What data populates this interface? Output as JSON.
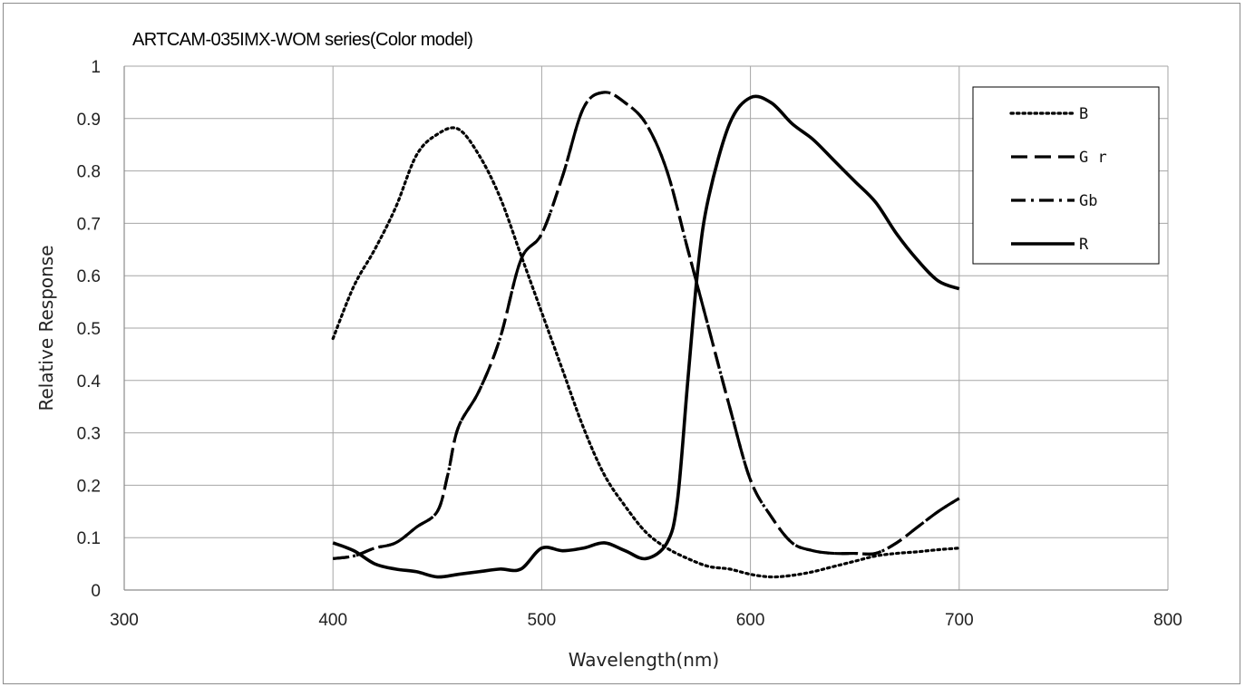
{
  "chart_data": {
    "type": "line",
    "title": "ARTCAM-035IMX-WOM series(Color model)",
    "xlabel": "Wavelength(nm)",
    "ylabel": "Relative Response",
    "xlim": [
      300,
      800
    ],
    "ylim": [
      0,
      1
    ],
    "x_ticks": [
      "300",
      "400",
      "500",
      "600",
      "700",
      "800"
    ],
    "y_ticks": [
      "0",
      "0.1",
      "0.2",
      "0.3",
      "0.4",
      "0.5",
      "0.6",
      "0.7",
      "0.8",
      "0.9",
      "1"
    ],
    "grid": true,
    "legend_position": "top-right",
    "series": [
      {
        "name": "B",
        "style": "dotted",
        "color": "#000000",
        "x": [
          400,
          410,
          420,
          430,
          440,
          450,
          460,
          470,
          480,
          490,
          500,
          510,
          520,
          530,
          540,
          550,
          560,
          570,
          580,
          590,
          600,
          610,
          620,
          630,
          640,
          650,
          660,
          670,
          680,
          690,
          700
        ],
        "y": [
          0.48,
          0.58,
          0.65,
          0.73,
          0.83,
          0.87,
          0.88,
          0.83,
          0.75,
          0.64,
          0.53,
          0.42,
          0.31,
          0.22,
          0.16,
          0.11,
          0.08,
          0.06,
          0.045,
          0.04,
          0.03,
          0.025,
          0.028,
          0.035,
          0.045,
          0.055,
          0.065,
          0.07,
          0.073,
          0.077,
          0.08
        ]
      },
      {
        "name": "G r",
        "style": "dashed",
        "color": "#000000",
        "x": [
          400,
          410,
          420,
          430,
          440,
          450,
          455,
          460,
          470,
          480,
          490,
          500,
          510,
          520,
          530,
          540,
          550,
          560,
          570,
          580,
          590,
          600,
          610,
          620,
          630,
          640,
          650,
          660,
          670,
          680,
          690,
          700
        ],
        "y": [
          0.06,
          0.065,
          0.08,
          0.09,
          0.12,
          0.15,
          0.22,
          0.31,
          0.38,
          0.48,
          0.63,
          0.68,
          0.79,
          0.92,
          0.95,
          0.93,
          0.89,
          0.8,
          0.65,
          0.5,
          0.35,
          0.21,
          0.14,
          0.09,
          0.075,
          0.07,
          0.07,
          0.07,
          0.09,
          0.12,
          0.15,
          0.175
        ]
      },
      {
        "name": "Gb",
        "style": "dashdot",
        "color": "#000000",
        "x": [
          400,
          410,
          420,
          430,
          440,
          450,
          455,
          460,
          470,
          480,
          490,
          500,
          510,
          520,
          530,
          540,
          550,
          560,
          570,
          580,
          590,
          600,
          610,
          620,
          630,
          640,
          650,
          660,
          670,
          680,
          690,
          700
        ],
        "y": [
          0.06,
          0.065,
          0.08,
          0.09,
          0.12,
          0.15,
          0.22,
          0.31,
          0.38,
          0.48,
          0.63,
          0.68,
          0.79,
          0.92,
          0.95,
          0.93,
          0.89,
          0.8,
          0.65,
          0.5,
          0.35,
          0.21,
          0.14,
          0.09,
          0.075,
          0.07,
          0.07,
          0.07,
          0.09,
          0.12,
          0.15,
          0.175
        ]
      },
      {
        "name": "R",
        "style": "solid",
        "color": "#000000",
        "x": [
          400,
          410,
          420,
          430,
          440,
          450,
          460,
          470,
          480,
          490,
          500,
          510,
          520,
          530,
          540,
          550,
          560,
          565,
          570,
          575,
          580,
          590,
          600,
          610,
          620,
          630,
          640,
          650,
          660,
          670,
          680,
          690,
          700
        ],
        "y": [
          0.09,
          0.075,
          0.05,
          0.04,
          0.035,
          0.025,
          0.03,
          0.035,
          0.04,
          0.04,
          0.08,
          0.075,
          0.08,
          0.09,
          0.075,
          0.06,
          0.09,
          0.17,
          0.4,
          0.62,
          0.75,
          0.89,
          0.94,
          0.93,
          0.89,
          0.86,
          0.82,
          0.78,
          0.74,
          0.68,
          0.63,
          0.59,
          0.575
        ]
      }
    ]
  }
}
